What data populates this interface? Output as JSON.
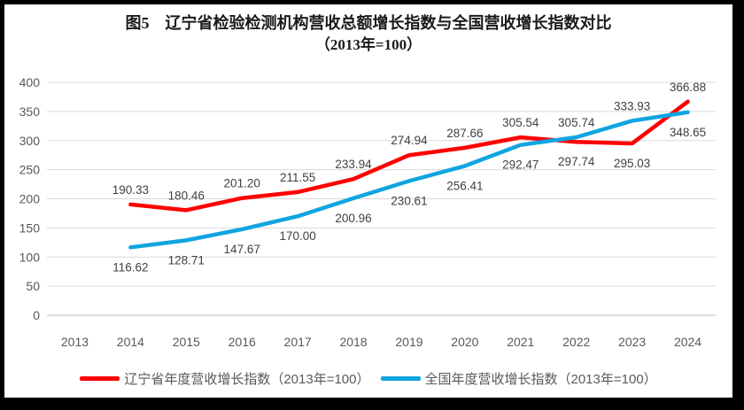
{
  "title": {
    "line1": "图5　辽宁省检验检测机构营收总额增长指数与全国营收增长指数对比",
    "line2": "（2013年=100）"
  },
  "chart_data": {
    "type": "line",
    "title": "图5 辽宁省检验检测机构营收总额增长指数与全国营收增长指数对比（2013年=100）",
    "categories": [
      "2013",
      "2014",
      "2015",
      "2016",
      "2017",
      "2018",
      "2019",
      "2020",
      "2021",
      "2022",
      "2023",
      "2024"
    ],
    "series": [
      {
        "name": "辽宁省年度营收增长指数（2013年=100）",
        "color": "#FF0000",
        "values": [
          null,
          190.33,
          180.46,
          201.2,
          211.55,
          233.94,
          274.94,
          287.66,
          305.54,
          297.74,
          295.03,
          366.88
        ],
        "label_pos": [
          null,
          "above",
          "above",
          "above",
          "above",
          "above",
          "above",
          "above",
          "above",
          "below",
          "below",
          "above"
        ]
      },
      {
        "name": "全国年度营收增长指数（2013年=100）",
        "color": "#0FA5E0",
        "values": [
          null,
          116.62,
          128.71,
          147.67,
          170.0,
          200.96,
          230.61,
          256.41,
          292.47,
          305.74,
          333.93,
          348.65
        ],
        "label_pos": [
          null,
          "below",
          "below",
          "below",
          "below",
          "below",
          "below",
          "below",
          "below",
          "above",
          "above",
          "below"
        ]
      }
    ],
    "ylim": [
      0,
      400
    ],
    "yticks": [
      0,
      50,
      100,
      150,
      200,
      250,
      300,
      350,
      400
    ],
    "xlabel": "",
    "ylabel": "",
    "grid": true,
    "legend_position": "bottom"
  },
  "colors": {
    "grid": "#D9D9D9",
    "axis_line": "#BFBFBF",
    "tick_label": "#595959",
    "data_label": "#404040",
    "frame_border": "#000000"
  }
}
